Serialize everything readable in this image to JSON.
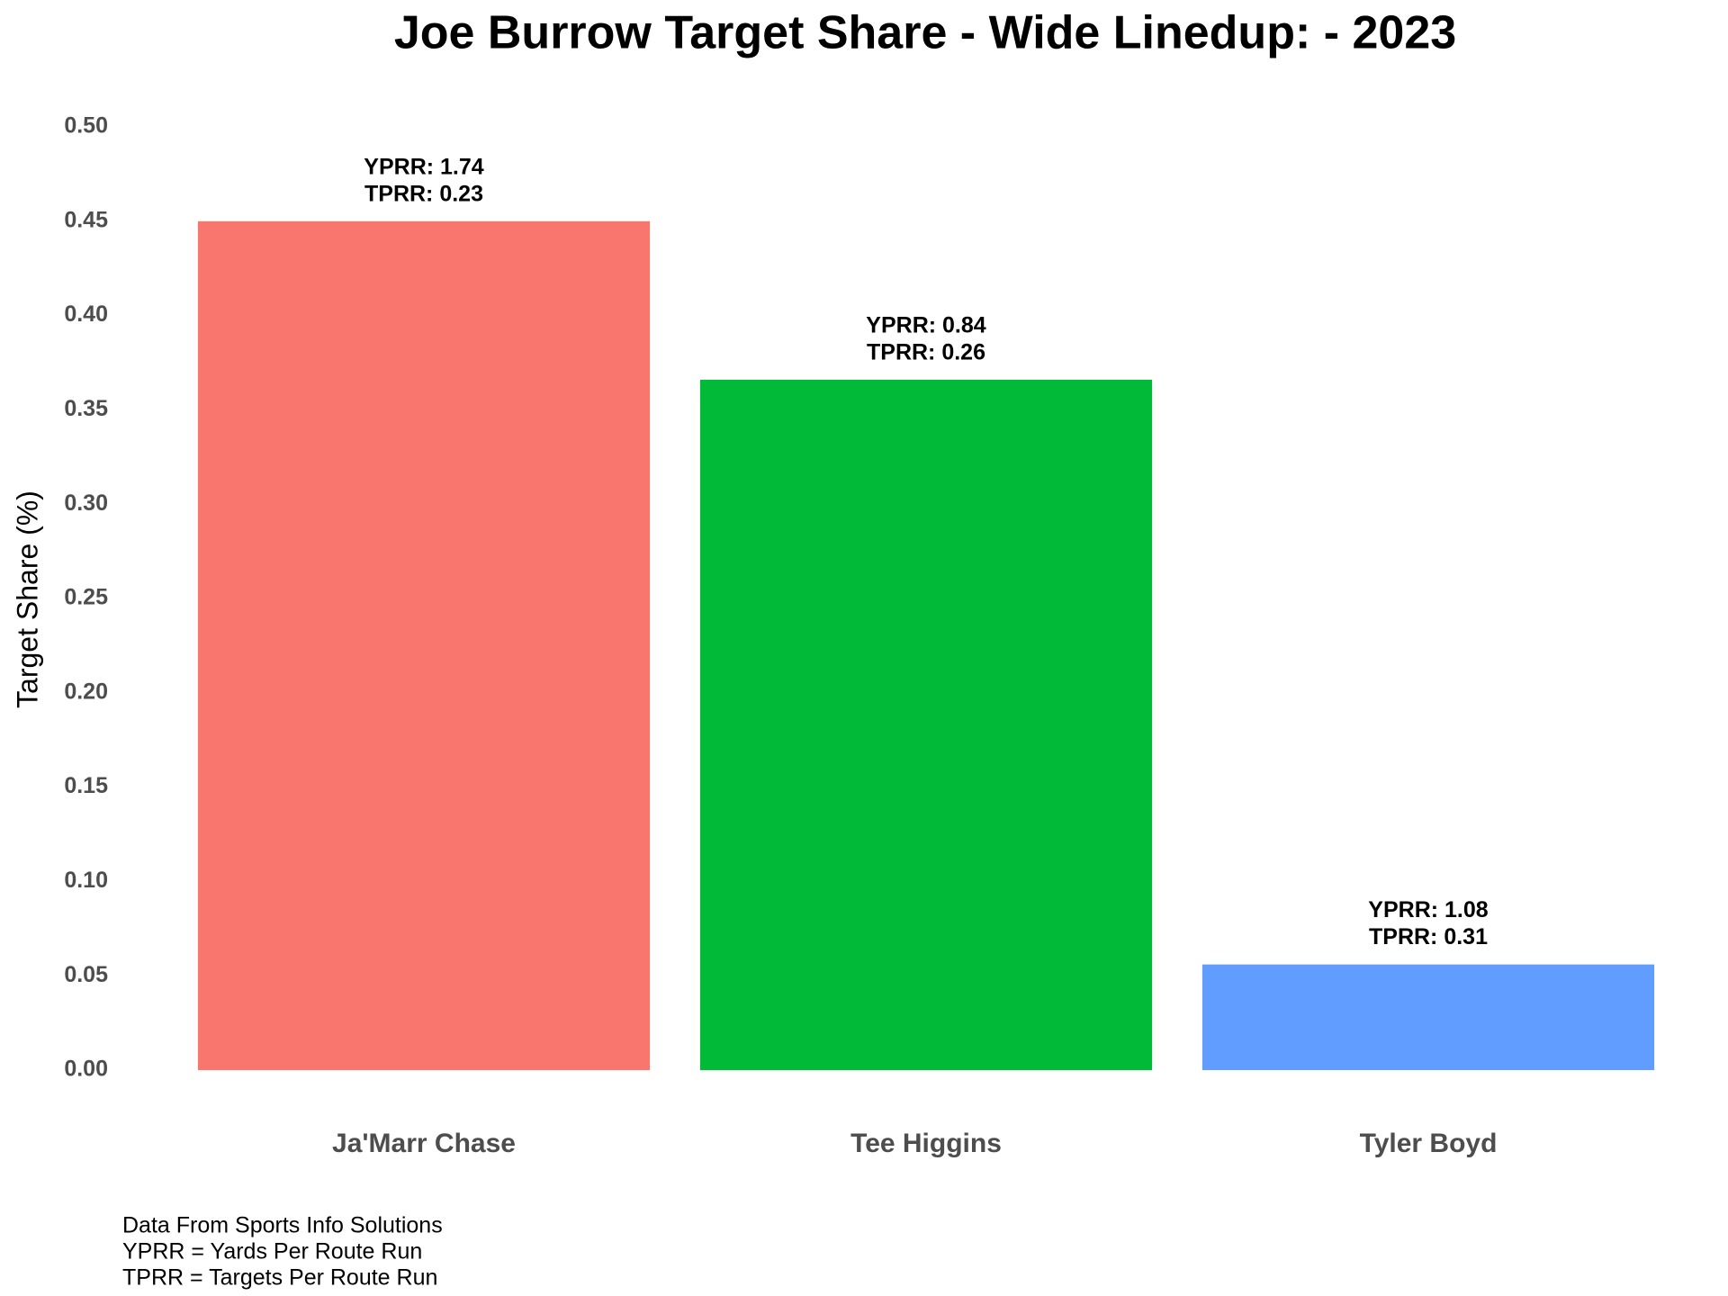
{
  "chart_data": {
    "type": "bar",
    "title": "Joe Burrow Target Share - Wide Linedup: - 2023",
    "y_label": "Target Share (%)",
    "categories": [
      "Ja'Marr Chase",
      "Tee Higgins",
      "Tyler Boyd"
    ],
    "values": [
      0.45,
      0.366,
      0.056
    ],
    "colors": [
      "#F8766D",
      "#00BA38",
      "#619CFF"
    ],
    "annotations": [
      [
        "YPRR: 1.74",
        "TPRR: 0.23"
      ],
      [
        "YPRR: 0.84",
        "TPRR: 0.26"
      ],
      [
        "YPRR: 1.08",
        "TPRR: 0.31"
      ]
    ],
    "ylim": [
      0,
      0.5
    ],
    "yticks": [
      {
        "value": 0,
        "label": "0.00"
      },
      0.05,
      {
        "value": 0.1,
        "label": "0.10"
      },
      0.15,
      {
        "value": 0.2,
        "label": "0.20"
      },
      0.25,
      {
        "value": 0.3,
        "label": "0.30"
      },
      0.35,
      {
        "value": 0.4,
        "label": "0.40"
      },
      0.45,
      {
        "value": 0.5,
        "label": "0.50"
      }
    ],
    "grid": false,
    "caption": [
      "Data From Sports Info Solutions",
      "YPRR = Yards Per Route Run",
      "TPRR = Targets Per Route Run"
    ]
  }
}
